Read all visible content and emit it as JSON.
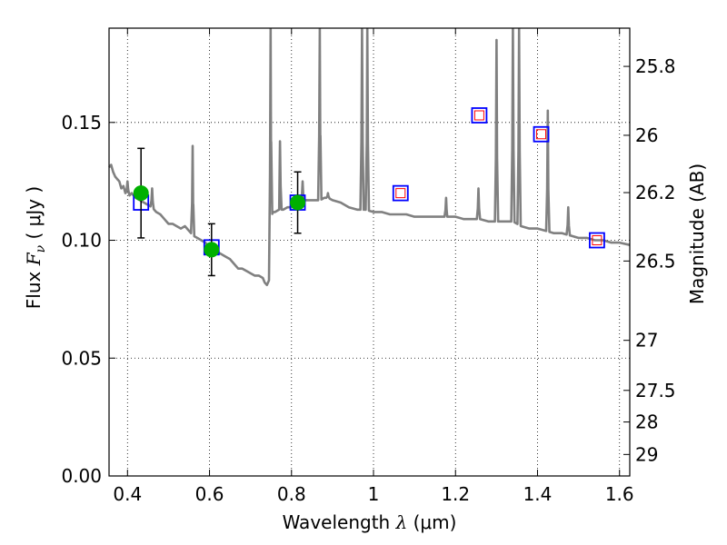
{
  "chart_data": {
    "type": "scatter",
    "xlabel": {
      "pre": "Wavelength  ",
      "sym": "λ",
      "post": " (μm)"
    },
    "ylabel": {
      "pre": "Flux  ",
      "sym": "F",
      "sub": "ν",
      "post": "  ( μJy )"
    },
    "y2label": "Magnitude (AB)",
    "xlim": [
      0.355,
      1.625
    ],
    "ylim": [
      0.0,
      0.19
    ],
    "grid": true,
    "x_ticks": [
      {
        "v": 0.4,
        "label": "0.4"
      },
      {
        "v": 0.6,
        "label": "0.6"
      },
      {
        "v": 0.8,
        "label": "0.8"
      },
      {
        "v": 1.0,
        "label": "1"
      },
      {
        "v": 1.2,
        "label": "1.2"
      },
      {
        "v": 1.4,
        "label": "1.4"
      },
      {
        "v": 1.6,
        "label": "1.6"
      }
    ],
    "y_ticks": [
      {
        "v": 0.0,
        "label": "0.00"
      },
      {
        "v": 0.05,
        "label": "0.05"
      },
      {
        "v": 0.1,
        "label": "0.10"
      },
      {
        "v": 0.15,
        "label": "0.15"
      }
    ],
    "y2_ticks": [
      {
        "mag": 25.8,
        "label": "25.8"
      },
      {
        "mag": 26.0,
        "label": "26"
      },
      {
        "mag": 26.2,
        "label": "26.2"
      },
      {
        "mag": 26.5,
        "label": "26.5"
      },
      {
        "mag": 27.0,
        "label": "27"
      },
      {
        "mag": 27.5,
        "label": "27.5"
      },
      {
        "mag": 28.0,
        "label": "28"
      },
      {
        "mag": 29.0,
        "label": "29"
      }
    ],
    "series": [
      {
        "kind": "model_spectrum",
        "color": "#808080",
        "points": [
          [
            0.355,
            0.131
          ],
          [
            0.36,
            0.132
          ],
          [
            0.365,
            0.129
          ],
          [
            0.37,
            0.127
          ],
          [
            0.375,
            0.126
          ],
          [
            0.38,
            0.125
          ],
          [
            0.385,
            0.122
          ],
          [
            0.39,
            0.123
          ],
          [
            0.395,
            0.12
          ],
          [
            0.4,
            0.121
          ],
          [
            0.405,
            0.119
          ],
          [
            0.41,
            0.12
          ],
          [
            0.42,
            0.118
          ],
          [
            0.43,
            0.117
          ],
          [
            0.44,
            0.116
          ],
          [
            0.45,
            0.115
          ],
          [
            0.46,
            0.114
          ],
          [
            0.47,
            0.112
          ],
          [
            0.48,
            0.111
          ],
          [
            0.49,
            0.109
          ],
          [
            0.5,
            0.107
          ],
          [
            0.51,
            0.107
          ],
          [
            0.52,
            0.106
          ],
          [
            0.53,
            0.105
          ],
          [
            0.54,
            0.106
          ],
          [
            0.55,
            0.104
          ],
          [
            0.56,
            0.102
          ],
          [
            0.57,
            0.101
          ],
          [
            0.58,
            0.1
          ],
          [
            0.59,
            0.099
          ],
          [
            0.6,
            0.097
          ],
          [
            0.61,
            0.096
          ],
          [
            0.62,
            0.095
          ],
          [
            0.63,
            0.094
          ],
          [
            0.64,
            0.093
          ],
          [
            0.65,
            0.092
          ],
          [
            0.66,
            0.09
          ],
          [
            0.67,
            0.088
          ],
          [
            0.68,
            0.088
          ],
          [
            0.69,
            0.087
          ],
          [
            0.7,
            0.086
          ],
          [
            0.71,
            0.085
          ],
          [
            0.72,
            0.085
          ],
          [
            0.73,
            0.084
          ],
          [
            0.735,
            0.082
          ],
          [
            0.74,
            0.081
          ],
          [
            0.745,
            0.083
          ],
          [
            0.75,
            0.11
          ],
          [
            0.755,
            0.112
          ],
          [
            0.76,
            0.112
          ],
          [
            0.77,
            0.113
          ],
          [
            0.78,
            0.113
          ],
          [
            0.79,
            0.114
          ],
          [
            0.8,
            0.114
          ],
          [
            0.81,
            0.115
          ],
          [
            0.82,
            0.116
          ],
          [
            0.83,
            0.117
          ],
          [
            0.84,
            0.117
          ],
          [
            0.85,
            0.117
          ],
          [
            0.86,
            0.117
          ],
          [
            0.87,
            0.117
          ],
          [
            0.88,
            0.118
          ],
          [
            0.89,
            0.118
          ],
          [
            0.9,
            0.117
          ],
          [
            0.92,
            0.116
          ],
          [
            0.94,
            0.114
          ],
          [
            0.96,
            0.113
          ],
          [
            0.98,
            0.113
          ],
          [
            1.0,
            0.112
          ],
          [
            1.02,
            0.112
          ],
          [
            1.04,
            0.111
          ],
          [
            1.06,
            0.111
          ],
          [
            1.08,
            0.111
          ],
          [
            1.1,
            0.11
          ],
          [
            1.12,
            0.11
          ],
          [
            1.14,
            0.11
          ],
          [
            1.16,
            0.11
          ],
          [
            1.18,
            0.11
          ],
          [
            1.2,
            0.11
          ],
          [
            1.22,
            0.109
          ],
          [
            1.24,
            0.109
          ],
          [
            1.26,
            0.109
          ],
          [
            1.28,
            0.108
          ],
          [
            1.3,
            0.108
          ],
          [
            1.32,
            0.108
          ],
          [
            1.34,
            0.108
          ],
          [
            1.36,
            0.106
          ],
          [
            1.38,
            0.105
          ],
          [
            1.4,
            0.105
          ],
          [
            1.42,
            0.104
          ],
          [
            1.44,
            0.103
          ],
          [
            1.46,
            0.103
          ],
          [
            1.48,
            0.102
          ],
          [
            1.5,
            0.101
          ],
          [
            1.52,
            0.101
          ],
          [
            1.54,
            0.1
          ],
          [
            1.56,
            0.1
          ],
          [
            1.58,
            0.099
          ],
          [
            1.6,
            0.099
          ],
          [
            1.625,
            0.098
          ]
        ],
        "lines": [
          {
            "x": 0.4,
            "peak": 0.125
          },
          {
            "x": 0.46,
            "peak": 0.122
          },
          {
            "x": 0.559,
            "peak": 0.14
          },
          {
            "x": 0.749,
            "peak": 0.195
          },
          {
            "x": 0.772,
            "peak": 0.142
          },
          {
            "x": 0.827,
            "peak": 0.125
          },
          {
            "x": 0.869,
            "peak": 0.195
          },
          {
            "x": 0.889,
            "peak": 0.12
          },
          {
            "x": 0.972,
            "peak": 0.195
          },
          {
            "x": 0.985,
            "peak": 0.195
          },
          {
            "x": 1.177,
            "peak": 0.118
          },
          {
            "x": 1.256,
            "peak": 0.122
          },
          {
            "x": 1.3,
            "peak": 0.185
          },
          {
            "x": 1.34,
            "peak": 0.195
          },
          {
            "x": 1.355,
            "peak": 0.195
          },
          {
            "x": 1.425,
            "peak": 0.155
          },
          {
            "x": 1.475,
            "peak": 0.114
          }
        ]
      },
      {
        "kind": "model_bandflux",
        "marker": "square",
        "edge": "#0000ff",
        "points": [
          [
            0.433,
            0.116
          ],
          [
            0.605,
            0.097
          ],
          [
            0.815,
            0.116
          ],
          [
            1.066,
            0.12
          ],
          [
            1.258,
            0.153
          ],
          [
            1.409,
            0.145
          ],
          [
            1.545,
            0.1
          ]
        ]
      },
      {
        "kind": "observed",
        "marker": "circle",
        "color": "#00b000",
        "points": [
          {
            "x": 0.433,
            "y": 0.12,
            "err": 0.019
          },
          {
            "x": 0.605,
            "y": 0.096,
            "err": 0.011
          },
          {
            "x": 0.815,
            "y": 0.116,
            "err": 0.013
          }
        ]
      },
      {
        "kind": "upper_band",
        "marker": "small-square",
        "edge": "#ff0000",
        "points": [
          [
            1.066,
            0.12
          ],
          [
            1.258,
            0.153
          ],
          [
            1.409,
            0.145
          ],
          [
            1.545,
            0.1
          ]
        ]
      }
    ]
  }
}
